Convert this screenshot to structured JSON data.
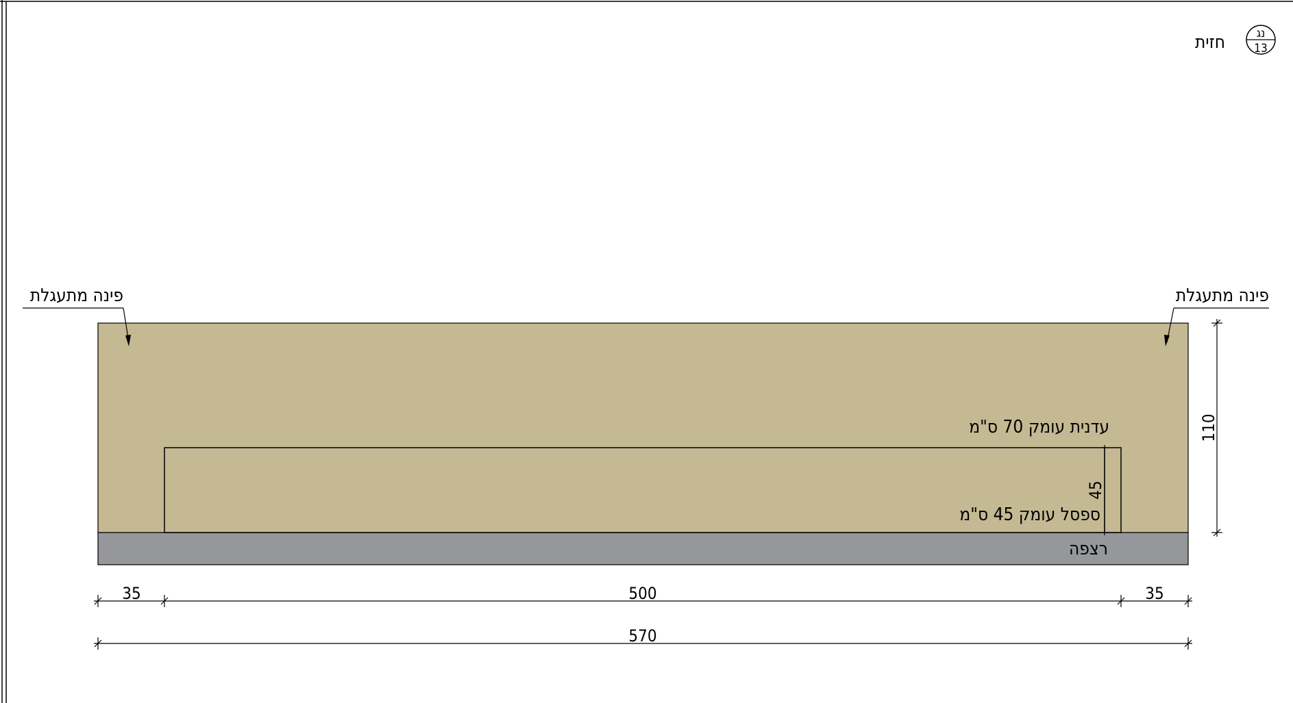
{
  "title": {
    "label": "חזית",
    "symbol_top": "נג",
    "symbol_bottom": "13"
  },
  "callouts": {
    "left_corner": "פינה מתעגלת",
    "right_corner": "פינה מתעגלת"
  },
  "labels": {
    "counter": "עדנית עומק 70 ס\"מ",
    "bench": "ספסל עומק 45 ס\"מ",
    "floor": "רצפה"
  },
  "dimensions": {
    "height_total": "110",
    "bench_height": "45",
    "left_margin": "35",
    "center_width": "500",
    "right_margin": "35",
    "total_width": "570"
  },
  "colors": {
    "wall": "#c4b993",
    "floor": "#96979b",
    "line": "#000000"
  }
}
